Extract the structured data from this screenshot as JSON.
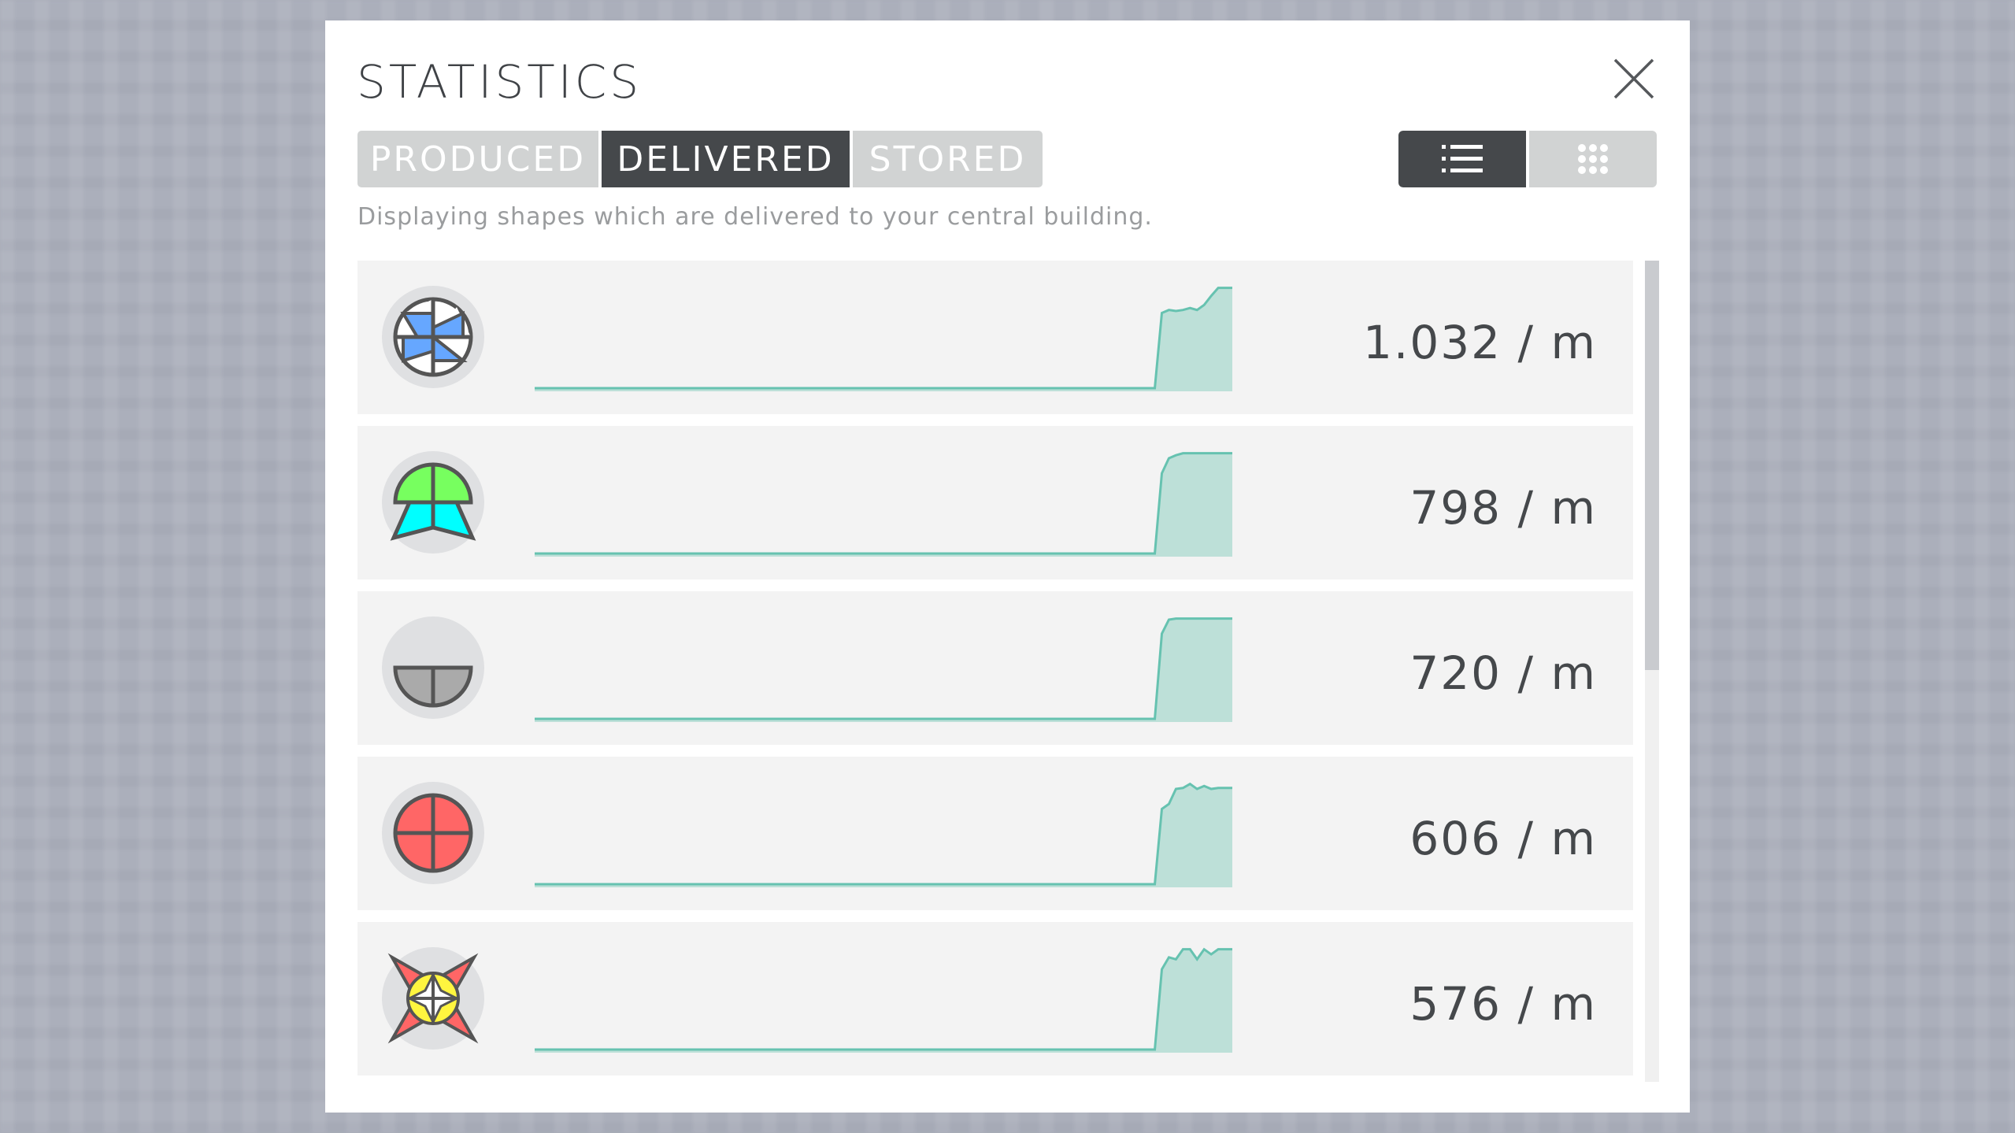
{
  "dialog": {
    "title": "STATISTICS",
    "close_icon": "close-icon",
    "tabs": [
      {
        "label": "PRODUCED",
        "active": false
      },
      {
        "label": "DELIVERED",
        "active": true
      },
      {
        "label": "STORED",
        "active": false
      }
    ],
    "view_modes": [
      {
        "icon": "list-icon",
        "active": true
      },
      {
        "icon": "grid-icon",
        "active": false
      }
    ],
    "description": "Displaying shapes which are delivered to your central building.",
    "colors": {
      "active_tab": "#45484b",
      "inactive_tab": "#d1d3d3",
      "sparkline": "#66c2b0",
      "sparkline_fill": "#bde0d8"
    },
    "items": [
      {
        "shape": "blue-white-windmill",
        "rate": "1.032 / m",
        "history": [
          0,
          0,
          0,
          0,
          0,
          0,
          0,
          0,
          0,
          0,
          0,
          0,
          0,
          0,
          0,
          0,
          0,
          0,
          0,
          0,
          0,
          0,
          0,
          0,
          0,
          0,
          0,
          0,
          0,
          0,
          0,
          0,
          0,
          0,
          0,
          0,
          0,
          0,
          0,
          0,
          0,
          0,
          0,
          0,
          0,
          0,
          0,
          0,
          0,
          0,
          0,
          0,
          0,
          0,
          0,
          0,
          0,
          0,
          0,
          0,
          0,
          0,
          0,
          0,
          0,
          0,
          0,
          0,
          0,
          0,
          0,
          0,
          0,
          0,
          0,
          0,
          0,
          0,
          0,
          0,
          0,
          0,
          0,
          0,
          0,
          0,
          0,
          0,
          0,
          0.75,
          0.78,
          0.77,
          0.78,
          0.8,
          0.78,
          0.83,
          0.92,
          1,
          1,
          1
        ]
      },
      {
        "shape": "green-circle-cyan-star",
        "rate": "798 / m",
        "history": [
          0,
          0,
          0,
          0,
          0,
          0,
          0,
          0,
          0,
          0,
          0,
          0,
          0,
          0,
          0,
          0,
          0,
          0,
          0,
          0,
          0,
          0,
          0,
          0,
          0,
          0,
          0,
          0,
          0,
          0,
          0,
          0,
          0,
          0,
          0,
          0,
          0,
          0,
          0,
          0,
          0,
          0,
          0,
          0,
          0,
          0,
          0,
          0,
          0,
          0,
          0,
          0,
          0,
          0,
          0,
          0,
          0,
          0,
          0,
          0,
          0,
          0,
          0,
          0,
          0,
          0,
          0,
          0,
          0,
          0,
          0,
          0,
          0,
          0,
          0,
          0,
          0,
          0,
          0,
          0,
          0,
          0,
          0,
          0,
          0,
          0,
          0,
          0,
          0,
          0.8,
          0.95,
          0.98,
          1,
          1,
          1,
          1,
          1,
          1,
          1,
          1
        ]
      },
      {
        "shape": "gray-half-circle",
        "rate": "720 / m",
        "history": [
          0,
          0,
          0,
          0,
          0,
          0,
          0,
          0,
          0,
          0,
          0,
          0,
          0,
          0,
          0,
          0,
          0,
          0,
          0,
          0,
          0,
          0,
          0,
          0,
          0,
          0,
          0,
          0,
          0,
          0,
          0,
          0,
          0,
          0,
          0,
          0,
          0,
          0,
          0,
          0,
          0,
          0,
          0,
          0,
          0,
          0,
          0,
          0,
          0,
          0,
          0,
          0,
          0,
          0,
          0,
          0,
          0,
          0,
          0,
          0,
          0,
          0,
          0,
          0,
          0,
          0,
          0,
          0,
          0,
          0,
          0,
          0,
          0,
          0,
          0,
          0,
          0,
          0,
          0,
          0,
          0,
          0,
          0,
          0,
          0,
          0,
          0,
          0,
          0,
          0.85,
          0.99,
          1,
          1,
          1,
          1,
          1,
          1,
          1,
          1,
          1
        ]
      },
      {
        "shape": "red-circle",
        "rate": "606 / m",
        "history": [
          0,
          0,
          0,
          0,
          0,
          0,
          0,
          0,
          0,
          0,
          0,
          0,
          0,
          0,
          0,
          0,
          0,
          0,
          0,
          0,
          0,
          0,
          0,
          0,
          0,
          0,
          0,
          0,
          0,
          0,
          0,
          0,
          0,
          0,
          0,
          0,
          0,
          0,
          0,
          0,
          0,
          0,
          0,
          0,
          0,
          0,
          0,
          0,
          0,
          0,
          0,
          0,
          0,
          0,
          0,
          0,
          0,
          0,
          0,
          0,
          0,
          0,
          0,
          0,
          0,
          0,
          0,
          0,
          0,
          0,
          0,
          0,
          0,
          0,
          0,
          0,
          0,
          0,
          0,
          0,
          0,
          0,
          0,
          0,
          0,
          0,
          0,
          0,
          0,
          0.75,
          0.8,
          0.95,
          0.96,
          1,
          0.95,
          0.98,
          0.95,
          0.96,
          0.96,
          0.96
        ]
      },
      {
        "shape": "red-star-yellow-circle",
        "rate": "576 / m",
        "history": [
          0,
          0,
          0,
          0,
          0,
          0,
          0,
          0,
          0,
          0,
          0,
          0,
          0,
          0,
          0,
          0,
          0,
          0,
          0,
          0,
          0,
          0,
          0,
          0,
          0,
          0,
          0,
          0,
          0,
          0,
          0,
          0,
          0,
          0,
          0,
          0,
          0,
          0,
          0,
          0,
          0,
          0,
          0,
          0,
          0,
          0,
          0,
          0,
          0,
          0,
          0,
          0,
          0,
          0,
          0,
          0,
          0,
          0,
          0,
          0,
          0,
          0,
          0,
          0,
          0,
          0,
          0,
          0,
          0,
          0,
          0,
          0,
          0,
          0,
          0,
          0,
          0,
          0,
          0,
          0,
          0,
          0,
          0,
          0,
          0,
          0,
          0,
          0,
          0,
          0.8,
          0.92,
          0.9,
          1,
          1,
          0.9,
          1,
          0.95,
          1,
          1,
          1
        ]
      }
    ],
    "scroll_position": 0
  }
}
